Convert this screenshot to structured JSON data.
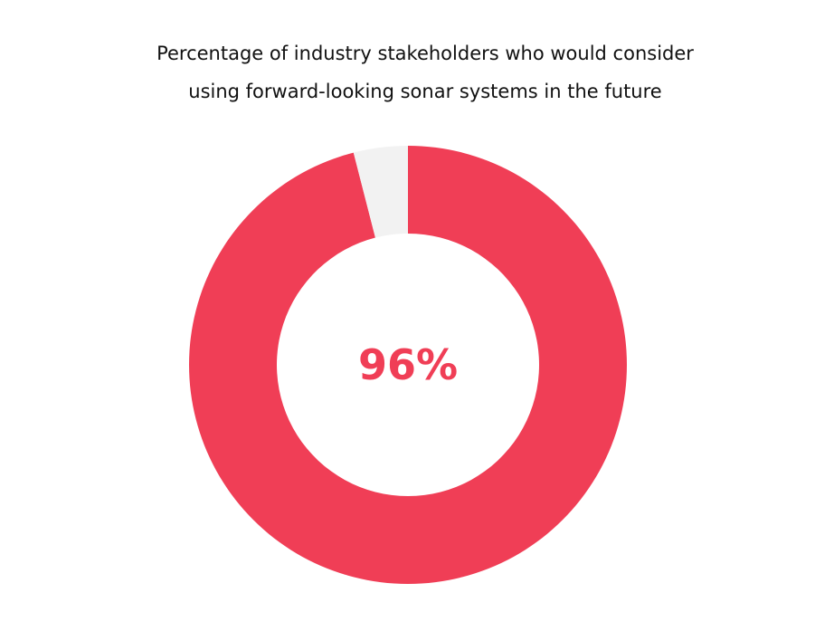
{
  "chart_data": {
    "type": "donut",
    "title": [
      "Percentage of industry stakeholders who would consider",
      "using forward-looking sonar systems in the future"
    ],
    "values": [
      96,
      4
    ],
    "value_labels": [
      "96%",
      null
    ],
    "colors": [
      "#f03e56",
      "#f2f2f2"
    ]
  }
}
